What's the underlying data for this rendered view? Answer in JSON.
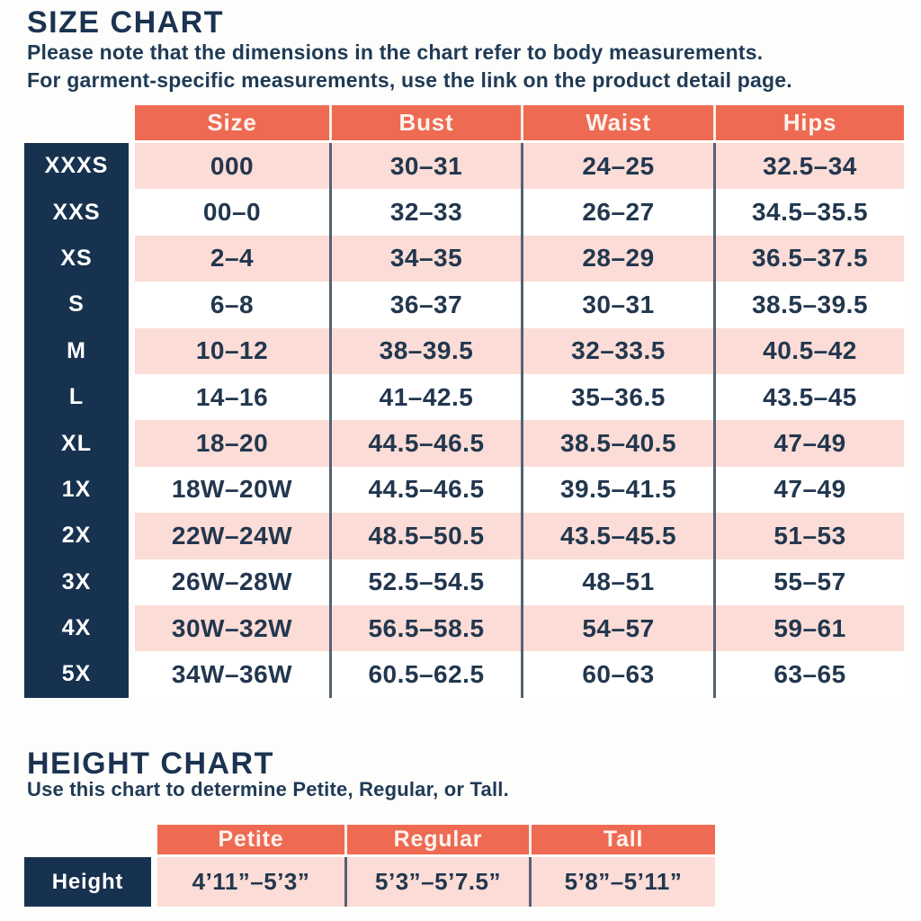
{
  "colors": {
    "navy": "#17324e",
    "coral": "#ee6a52",
    "pink_row": "#fbdcd6",
    "text_navy": "#22374e",
    "divider": "#54626f"
  },
  "size_chart": {
    "title": "SIZE CHART",
    "note_line1": "Please note that the dimensions in the chart refer to body measurements.",
    "note_line2": "For garment-specific measurements, use the link on the product detail page.",
    "columns": [
      "Size",
      "Bust",
      "Waist",
      "Hips"
    ],
    "rows": [
      {
        "label": "XXXS",
        "size": "000",
        "bust": "30–31",
        "waist": "24–25",
        "hips": "32.5–34"
      },
      {
        "label": "XXS",
        "size": "00–0",
        "bust": "32–33",
        "waist": "26–27",
        "hips": "34.5–35.5"
      },
      {
        "label": "XS",
        "size": "2–4",
        "bust": "34–35",
        "waist": "28–29",
        "hips": "36.5–37.5"
      },
      {
        "label": "S",
        "size": "6–8",
        "bust": "36–37",
        "waist": "30–31",
        "hips": "38.5–39.5"
      },
      {
        "label": "M",
        "size": "10–12",
        "bust": "38–39.5",
        "waist": "32–33.5",
        "hips": "40.5–42"
      },
      {
        "label": "L",
        "size": "14–16",
        "bust": "41–42.5",
        "waist": "35–36.5",
        "hips": "43.5–45"
      },
      {
        "label": "XL",
        "size": "18–20",
        "bust": "44.5–46.5",
        "waist": "38.5–40.5",
        "hips": "47–49"
      },
      {
        "label": "1X",
        "size": "18W–20W",
        "bust": "44.5–46.5",
        "waist": "39.5–41.5",
        "hips": "47–49"
      },
      {
        "label": "2X",
        "size": "22W–24W",
        "bust": "48.5–50.5",
        "waist": "43.5–45.5",
        "hips": "51–53"
      },
      {
        "label": "3X",
        "size": "26W–28W",
        "bust": "52.5–54.5",
        "waist": "48–51",
        "hips": "55–57"
      },
      {
        "label": "4X",
        "size": "30W–32W",
        "bust": "56.5–58.5",
        "waist": "54–57",
        "hips": "59–61"
      },
      {
        "label": "5X",
        "size": "34W–36W",
        "bust": "60.5–62.5",
        "waist": "60–63",
        "hips": "63–65"
      }
    ]
  },
  "height_chart": {
    "title": "HEIGHT CHART",
    "note": "Use this chart to determine Petite, Regular, or Tall.",
    "columns": [
      "Petite",
      "Regular",
      "Tall"
    ],
    "row_label": "Height",
    "values": [
      "4’11”–5’3”",
      "5’3”–5’7.5”",
      "5’8”–5’11”"
    ]
  },
  "chart_data": [
    {
      "type": "table",
      "title": "SIZE CHART",
      "columns": [
        "Size",
        "Bust",
        "Waist",
        "Hips"
      ],
      "row_labels": [
        "XXXS",
        "XXS",
        "XS",
        "S",
        "M",
        "L",
        "XL",
        "1X",
        "2X",
        "3X",
        "4X",
        "5X"
      ],
      "rows": [
        [
          "000",
          "30–31",
          "24–25",
          "32.5–34"
        ],
        [
          "00–0",
          "32–33",
          "26–27",
          "34.5–35.5"
        ],
        [
          "2–4",
          "34–35",
          "28–29",
          "36.5–37.5"
        ],
        [
          "6–8",
          "36–37",
          "30–31",
          "38.5–39.5"
        ],
        [
          "10–12",
          "38–39.5",
          "32–33.5",
          "40.5–42"
        ],
        [
          "14–16",
          "41–42.5",
          "35–36.5",
          "43.5–45"
        ],
        [
          "18–20",
          "44.5–46.5",
          "38.5–40.5",
          "47–49"
        ],
        [
          "18W–20W",
          "44.5–46.5",
          "39.5–41.5",
          "47–49"
        ],
        [
          "22W–24W",
          "48.5–50.5",
          "43.5–45.5",
          "51–53"
        ],
        [
          "26W–28W",
          "52.5–54.5",
          "48–51",
          "55–57"
        ],
        [
          "30W–32W",
          "56.5–58.5",
          "54–57",
          "59–61"
        ],
        [
          "34W–36W",
          "60.5–62.5",
          "60–63",
          "63–65"
        ]
      ]
    },
    {
      "type": "table",
      "title": "HEIGHT CHART",
      "columns": [
        "Petite",
        "Regular",
        "Tall"
      ],
      "row_labels": [
        "Height"
      ],
      "rows": [
        [
          "4’11”–5’3”",
          "5’3”–5’7.5”",
          "5’8”–5’11”"
        ]
      ]
    }
  ]
}
